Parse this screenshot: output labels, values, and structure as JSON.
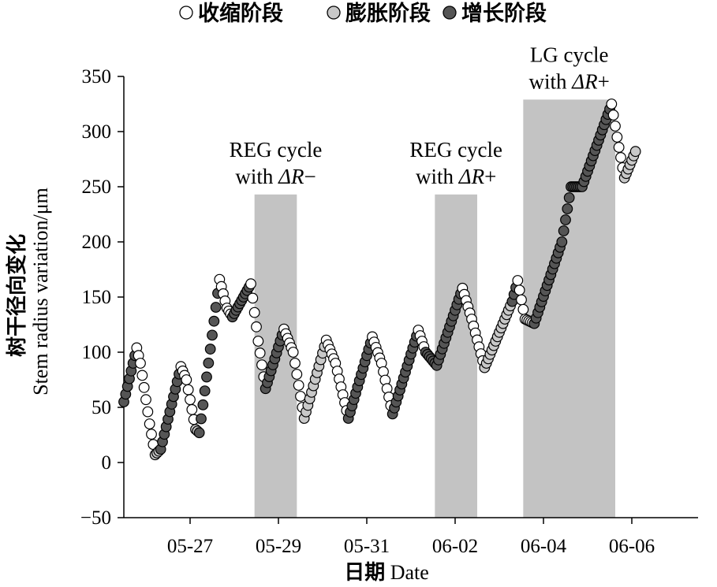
{
  "chart_data": {
    "type": "scatter",
    "legend": [
      {
        "label": "收缩阶段",
        "fill": "#ffffff"
      },
      {
        "label": "膨胀阶段",
        "fill": "#c8c8c8"
      },
      {
        "label": "增长阶段",
        "fill": "#555555"
      }
    ],
    "legend_position": "top",
    "ylabel_cn": "树干径向变化",
    "ylabel_en": "Stem radius variation/μm",
    "xlabel_cn": "日期",
    "xlabel_en": "Date",
    "ylim": [
      -50,
      350
    ],
    "yticks": [
      350,
      300,
      250,
      200,
      150,
      100,
      50,
      0,
      -50
    ],
    "xlim": [
      "2021-05-25T12:00",
      "2021-06-07T12:00"
    ],
    "xticks": [
      {
        "date": "2021-05-27",
        "label": "05-27"
      },
      {
        "date": "2021-05-29",
        "label": "05-29"
      },
      {
        "date": "2021-05-31",
        "label": "05-31"
      },
      {
        "date": "2021-06-02",
        "label": "06-02"
      },
      {
        "date": "2021-06-04",
        "label": "06-04"
      },
      {
        "date": "2021-06-06",
        "label": "06-06"
      }
    ],
    "grid": false,
    "shaded_regions": [
      {
        "x_start": "2021-05-28T11:00",
        "x_end": "2021-05-29T10:00",
        "y_top": 243,
        "y_bottom": -50,
        "label_line1": "REG cycle",
        "label_line2_prefix": "with ",
        "label_symbol": "ΔR",
        "label_sign": "−"
      },
      {
        "x_start": "2021-06-01T13:00",
        "x_end": "2021-06-02T12:00",
        "y_top": 243,
        "y_bottom": -50,
        "label_line1": "REG cycle",
        "label_line2_prefix": "with ",
        "label_symbol": "ΔR",
        "label_sign": "+"
      },
      {
        "x_start": "2021-06-03T13:00",
        "x_end": "2021-06-05T15:00",
        "y_top": 329,
        "y_bottom": -50,
        "label_line1": "LG cycle",
        "label_line2_prefix": "with ",
        "label_symbol": "ΔR",
        "label_sign": "+"
      }
    ],
    "series_line": {
      "name": "",
      "phases_legend_index": {
        "contraction": 0,
        "expansion": 1,
        "growth": 2
      },
      "keypoints": [
        [
          "2021-05-25T12:00",
          55,
          "expansion"
        ],
        [
          "2021-05-25T17:00",
          90,
          "growth"
        ],
        [
          "2021-05-25T19:00",
          104,
          "growth"
        ],
        [
          "2021-05-25T21:00",
          90,
          "contraction"
        ],
        [
          "2021-05-26T02:00",
          35,
          "contraction"
        ],
        [
          "2021-05-26T05:00",
          7,
          "contraction"
        ],
        [
          "2021-05-26T08:00",
          12,
          "expansion"
        ],
        [
          "2021-05-26T19:00",
          87,
          "growth"
        ],
        [
          "2021-05-26T22:00",
          75,
          "contraction"
        ],
        [
          "2021-05-27T03:00",
          30,
          "contraction"
        ],
        [
          "2021-05-27T05:00",
          27,
          "expansion"
        ],
        [
          "2021-05-27T16:00",
          166,
          "growth"
        ],
        [
          "2021-05-27T20:00",
          140,
          "contraction"
        ],
        [
          "2021-05-27T23:00",
          132,
          "contraction"
        ],
        [
          "2021-05-28T09:00",
          162,
          "growth"
        ],
        [
          "2021-05-28T13:00",
          110,
          "contraction"
        ],
        [
          "2021-05-28T17:00",
          67,
          "contraction"
        ],
        [
          "2021-05-29T03:00",
          121,
          "growth"
        ],
        [
          "2021-05-29T08:00",
          100,
          "contraction"
        ],
        [
          "2021-05-29T14:00",
          40,
          "contraction"
        ],
        [
          "2021-05-30T02:00",
          111,
          "expansion"
        ],
        [
          "2021-05-30T07:00",
          90,
          "contraction"
        ],
        [
          "2021-05-30T14:00",
          40,
          "contraction"
        ],
        [
          "2021-05-31T03:00",
          114,
          "growth"
        ],
        [
          "2021-05-31T08:00",
          90,
          "contraction"
        ],
        [
          "2021-05-31T14:00",
          44,
          "contraction"
        ],
        [
          "2021-06-01T04:00",
          120,
          "growth"
        ],
        [
          "2021-06-01T08:00",
          100,
          "contraction"
        ],
        [
          "2021-06-01T14:00",
          88,
          "growth"
        ],
        [
          "2021-06-02T04:00",
          158,
          "growth"
        ],
        [
          "2021-06-02T09:00",
          130,
          "contraction"
        ],
        [
          "2021-06-02T16:00",
          86,
          "contraction"
        ],
        [
          "2021-06-03T07:00",
          146,
          "expansion"
        ],
        [
          "2021-06-03T10:00",
          165,
          "growth"
        ],
        [
          "2021-06-03T14:00",
          130,
          "contraction"
        ],
        [
          "2021-06-03T19:00",
          126,
          "contraction"
        ],
        [
          "2021-06-04T10:00",
          200,
          "growth"
        ],
        [
          "2021-06-04T15:00",
          250,
          "growth"
        ],
        [
          "2021-06-04T21:00",
          250,
          "growth"
        ],
        [
          "2021-06-05T13:00",
          325,
          "growth"
        ],
        [
          "2021-06-05T16:00",
          295,
          "contraction"
        ],
        [
          "2021-06-05T20:00",
          258,
          "contraction"
        ],
        [
          "2021-06-06T02:00",
          282,
          "expansion"
        ]
      ]
    }
  }
}
